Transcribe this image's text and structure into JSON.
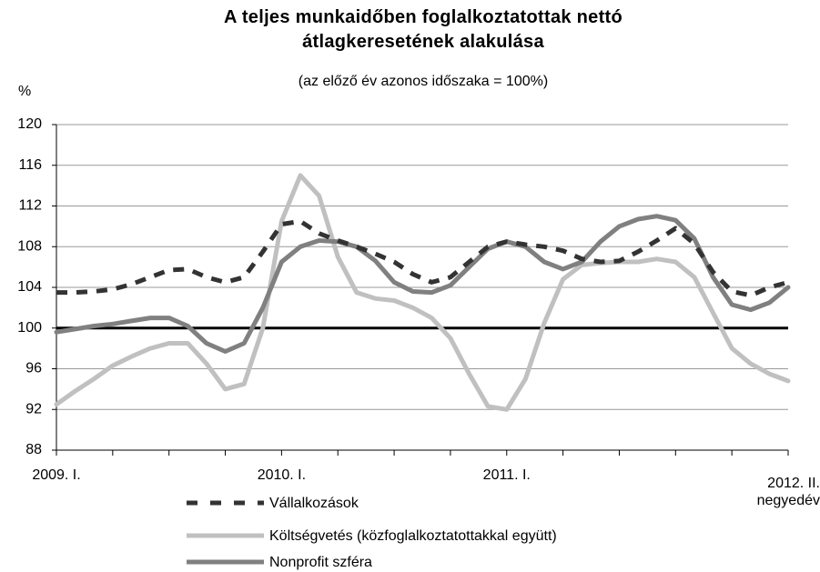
{
  "chart_data": {
    "type": "line",
    "title": "A teljes munkaidőben foglalkoztatottak nettó átlagkeresetének alakulása",
    "subtitle": "(az előző év azonos időszaka = 100%)",
    "y_label": "%",
    "categories": [
      "2009. I.",
      null,
      null,
      null,
      null,
      null,
      null,
      null,
      null,
      null,
      null,
      null,
      "2010. I.",
      null,
      null,
      null,
      null,
      null,
      null,
      null,
      null,
      null,
      null,
      null,
      "2011. I.",
      null,
      null,
      null,
      null,
      null,
      null,
      null,
      null,
      null,
      null,
      null,
      null,
      null,
      null,
      "2012. II. negyedév"
    ],
    "series": [
      {
        "name": "Vállalkozások",
        "color": "#333333",
        "dashed": true,
        "values": [
          103.5,
          103.5,
          103.6,
          103.8,
          104.3,
          105.0,
          105.7,
          105.8,
          105.0,
          104.5,
          105.0,
          107.5,
          110.2,
          110.5,
          109.3,
          108.6,
          108.0,
          107.3,
          106.5,
          105.3,
          104.5,
          105.0,
          106.5,
          108.0,
          108.5,
          108.2,
          108.0,
          107.6,
          106.8,
          106.5,
          106.6,
          107.5,
          108.6,
          109.8,
          108.3,
          105.5,
          103.6,
          103.2,
          104.0,
          104.5
        ]
      },
      {
        "name": "Költségvetés (közfoglalkoztatottakkal együtt)",
        "color": "#c0c0c0",
        "dashed": false,
        "values": [
          92.5,
          93.8,
          95.0,
          96.3,
          97.2,
          98.0,
          98.5,
          98.5,
          96.5,
          94.0,
          94.5,
          100.0,
          110.5,
          115.0,
          113.0,
          107.0,
          103.5,
          102.9,
          102.7,
          102.0,
          101.0,
          99.0,
          95.5,
          92.3,
          92.0,
          95.0,
          100.5,
          104.8,
          106.2,
          106.4,
          106.5,
          106.5,
          106.8,
          106.5,
          105.0,
          101.5,
          98.0,
          96.5,
          95.5,
          94.8
        ]
      },
      {
        "name": "Nonprofit szféra",
        "color": "#808080",
        "dashed": false,
        "values": [
          99.6,
          99.9,
          100.2,
          100.4,
          100.7,
          101.0,
          101.0,
          100.2,
          98.5,
          97.7,
          98.5,
          102.0,
          106.5,
          108.0,
          108.6,
          108.5,
          108.0,
          106.6,
          104.5,
          103.6,
          103.5,
          104.2,
          106.0,
          107.8,
          108.5,
          108.0,
          106.5,
          105.8,
          106.5,
          108.5,
          110.0,
          110.7,
          111.0,
          110.6,
          108.8,
          105.0,
          102.3,
          101.8,
          102.5,
          104.0
        ]
      }
    ],
    "reference_line": 100,
    "ylim": [
      88,
      120
    ],
    "yticks": [
      88,
      92,
      96,
      100,
      104,
      108,
      112,
      116,
      120
    ],
    "grid": true
  }
}
